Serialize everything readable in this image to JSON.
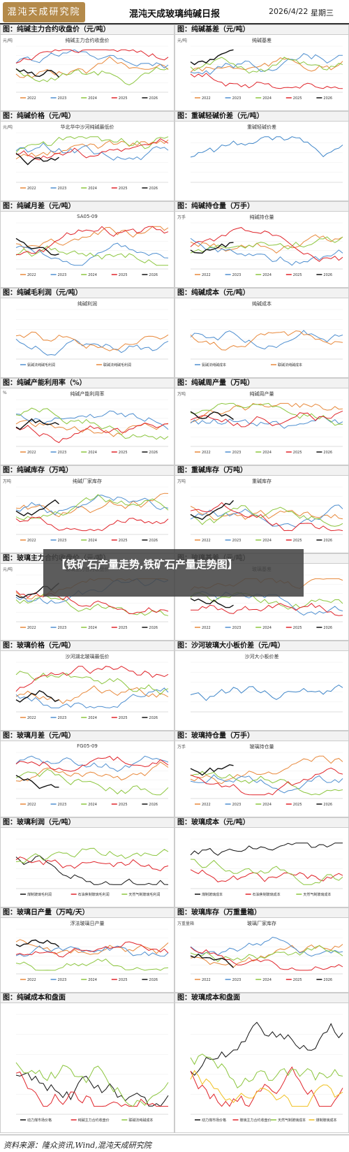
{
  "header": {
    "logo_text": "混沌天成研究院",
    "title": "混沌天成玻璃纯碱日报",
    "date": "2026/4/22",
    "weekday": "星期三"
  },
  "panels": [
    {
      "title": "图：纯碱主力合约收盘价（元/吨）",
      "chart_title": "纯碱主力合约收盘价",
      "unit": "元/吨",
      "legend": [
        "2022",
        "2023",
        "2024",
        "2025",
        "2026"
      ]
    },
    {
      "title": "图：纯碱基差（元/吨）",
      "chart_title": "纯碱基差",
      "unit": "元/吨",
      "legend": [
        "2022",
        "2023",
        "2024",
        "2025",
        "2026"
      ]
    },
    {
      "title": "图：纯碱价格（元/吨）",
      "chart_title": "华北华中沙河纯碱最低价",
      "unit": "元/吨",
      "legend": [
        "2022",
        "2023",
        "2024",
        "2025",
        "2026"
      ]
    },
    {
      "title": "图：重碱轻碱价差（元/吨）",
      "chart_title": "重碱轻碱价差",
      "unit": "",
      "legend": []
    },
    {
      "title": "图：纯碱月差（元/吨）",
      "chart_title": "SA05-09",
      "unit": "",
      "legend": [
        "2022",
        "2023",
        "2024",
        "2025",
        "2026"
      ]
    },
    {
      "title": "图：纯碱持仓量（万手）",
      "chart_title": "纯碱持仓量",
      "unit": "万手",
      "legend": [
        "2022",
        "2023",
        "2024",
        "2025",
        "2026"
      ]
    },
    {
      "title": "图：纯碱毛利润（元/吨）",
      "chart_title": "纯碱利润",
      "unit": "",
      "legend": [
        "氨碱法纯碱毛利润",
        "联碱法纯碱毛利润"
      ]
    },
    {
      "title": "图：纯碱成本（元/吨）",
      "chart_title": "纯碱成本",
      "unit": "",
      "legend": [
        "氨碱法纯碱成本",
        "联碱法纯碱成本"
      ]
    },
    {
      "title": "图：纯碱产能利用率（%）",
      "chart_title": "纯碱产能利用率",
      "unit": "%",
      "legend": [
        "2022",
        "2023",
        "2024",
        "2025",
        "2026"
      ]
    },
    {
      "title": "图：纯碱周产量（万吨）",
      "chart_title": "纯碱周产量",
      "unit": "万吨",
      "legend": [
        "2022",
        "2023",
        "2024",
        "2025",
        "2026"
      ]
    },
    {
      "title": "图：纯碱库存（万吨）",
      "chart_title": "纯碱厂家库存",
      "unit": "万吨",
      "legend": [
        "2022",
        "2023",
        "2024",
        "2025",
        "2026"
      ]
    },
    {
      "title": "图：重碱库存（万吨）",
      "chart_title": "重碱库存",
      "unit": "万吨",
      "legend": [
        "2022",
        "2023",
        "2024",
        "2025",
        "2026"
      ]
    },
    {
      "title": "图：玻璃主力合约收盘价（元/吨）",
      "chart_title": "玻璃主力合约收盘价",
      "unit": "元/吨",
      "legend": [
        "2022",
        "2023",
        "2024",
        "2025",
        "2026"
      ]
    },
    {
      "title": "图：玻璃基差（元/吨）",
      "chart_title": "玻璃基差",
      "unit": "",
      "legend": [
        "2022",
        "2023",
        "2024",
        "2025",
        "2026"
      ]
    },
    {
      "title": "图：玻璃价格（元/吨）",
      "chart_title": "沙河湖北玻璃最低价",
      "unit": "",
      "legend": [
        "2022",
        "2023",
        "2024",
        "2025",
        "2026"
      ]
    },
    {
      "title": "图：沙河玻璃大小板价差（元/吨）",
      "chart_title": "沙河大小板价差",
      "unit": "",
      "legend": []
    },
    {
      "title": "图：玻璃月差（元/吨）",
      "chart_title": "FG05-09",
      "unit": "",
      "legend": [
        "2022",
        "2023",
        "2024",
        "2025",
        "2026"
      ]
    },
    {
      "title": "图：玻璃持仓量（万手）",
      "chart_title": "玻璃持仓量",
      "unit": "万手",
      "legend": [
        "2022",
        "2023",
        "2024",
        "2025",
        "2026"
      ]
    },
    {
      "title": "图：玻璃利润（元/吨）",
      "chart_title": "",
      "unit": "",
      "legend": [
        "煤制玻璃毛利润",
        "石油焦制玻璃毛利润",
        "天然气制玻璃毛利润"
      ]
    },
    {
      "title": "图：玻璃成本（元/吨）",
      "chart_title": "",
      "unit": "",
      "legend": [
        "煤制玻璃成本",
        "石油焦制玻璃成本",
        "天然气制玻璃成本"
      ]
    },
    {
      "title": "图：玻璃日产量（万吨/天）",
      "chart_title": "浮法玻璃日产量",
      "unit": "",
      "legend": [
        "2022",
        "2023",
        "2024",
        "2025",
        "2026"
      ]
    },
    {
      "title": "图：玻璃库存（万重量箱）",
      "chart_title": "玻璃厂家库存",
      "unit": "万重量箱",
      "legend": [
        "2022",
        "2023",
        "2024",
        "2025",
        "2026"
      ]
    },
    {
      "title": "图：纯碱成本和盘面",
      "chart_title": "",
      "unit": "",
      "legend": [
        "动力煤市场价格",
        "纯碱主力合约收盘价",
        "联碱法纯碱成本"
      ]
    },
    {
      "title": "图：玻璃成本和盘面",
      "chart_title": "",
      "unit": "",
      "legend": [
        "动力煤市场价格",
        "玻璃主力合约收盘价",
        "天然气制玻璃成本",
        "煤制玻璃成本"
      ]
    }
  ],
  "overlay": {
    "text": "【铁矿石产量走势,铁矿石产量走势图】"
  },
  "footer": {
    "source": "资料来源：隆众资讯,Wind,混沌天成研究院"
  },
  "colors": {
    "y2022": "#e8883a",
    "y2023": "#4f8fd0",
    "y2024": "#8cc63f",
    "y2025": "#e0242a",
    "y2026": "#111111",
    "single": "#3f86c9"
  }
}
